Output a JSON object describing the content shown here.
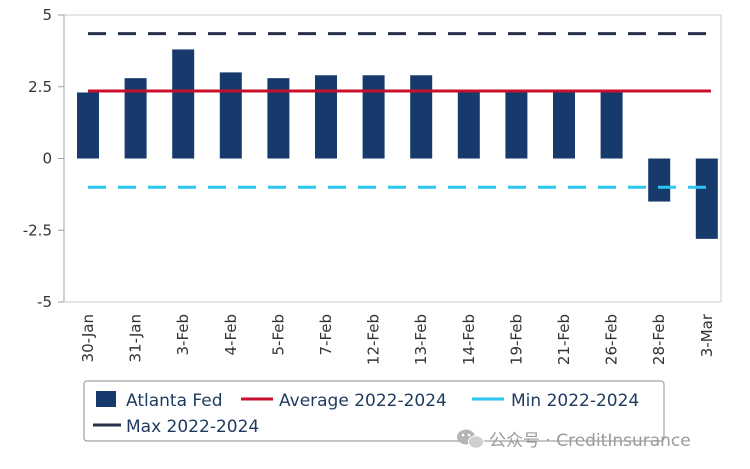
{
  "chart_data": {
    "type": "bar",
    "categories": [
      "30-Jan",
      "31-Jan",
      "3-Feb",
      "4-Feb",
      "5-Feb",
      "7-Feb",
      "12-Feb",
      "13-Feb",
      "14-Feb",
      "19-Feb",
      "21-Feb",
      "26-Feb",
      "28-Feb",
      "3-Mar"
    ],
    "series": [
      {
        "name": "Atlanta Fed",
        "type": "bar",
        "color": "#163a6b",
        "values": [
          2.3,
          2.8,
          3.8,
          3.0,
          2.8,
          2.9,
          2.9,
          2.9,
          2.3,
          2.3,
          2.3,
          2.3,
          -1.5,
          -2.8
        ]
      },
      {
        "name": "Average 2022-2024",
        "type": "line",
        "style": "solid",
        "color": "#c8102e",
        "value": 2.35
      },
      {
        "name": "Min 2022-2024",
        "type": "line",
        "style": "dashed",
        "color": "#2ec5f0",
        "value": -1.0
      },
      {
        "name": "Max 2022-2024",
        "type": "line",
        "style": "dashed",
        "color": "#27304a",
        "value": 4.35
      }
    ],
    "yticks": [
      "5",
      "2.5",
      "0",
      "-2.5",
      "-5"
    ],
    "ytick_values": [
      5,
      2.5,
      0,
      -2.5,
      -5
    ],
    "ylim": [
      -5,
      5
    ],
    "title": "",
    "xlabel": "",
    "ylabel": "",
    "grid": false,
    "legend_position": "bottom"
  },
  "watermark": {
    "text": "公众号 · CreditInsurance",
    "icon": "wechat-icon"
  }
}
